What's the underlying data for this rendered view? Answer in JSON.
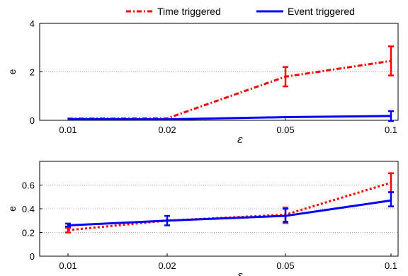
{
  "legend": {
    "entries": [
      {
        "name": "Time triggered",
        "color": "#ff0000",
        "style": "dash-dot"
      },
      {
        "name": "Event triggered",
        "color": "#0000ff",
        "style": "solid"
      }
    ],
    "placement": "top-center"
  },
  "chart_data": [
    {
      "type": "line",
      "panel": "top",
      "categories": [
        "0.01",
        "0.02",
        "0.05",
        "0.1"
      ],
      "xlabel": "ε",
      "ylabel": "e",
      "ylim": [
        0,
        4
      ],
      "yticks": [
        "0",
        "2",
        "4"
      ],
      "grid": "horizontal dotted",
      "series": [
        {
          "name": "Time triggered",
          "color": "#ff0000",
          "style": "dash-dot",
          "values": [
            0.07,
            0.08,
            1.8,
            2.45
          ],
          "err_low": [
            0.07,
            0.08,
            1.4,
            1.85
          ],
          "err_high": [
            0.07,
            0.08,
            2.2,
            3.05
          ]
        },
        {
          "name": "Event triggered",
          "color": "#0000ff",
          "style": "solid",
          "values": [
            0.05,
            0.04,
            0.13,
            0.18
          ],
          "err_low": [
            0.05,
            0.04,
            0.13,
            -0.03
          ],
          "err_high": [
            0.05,
            0.04,
            0.13,
            0.38
          ]
        }
      ]
    },
    {
      "type": "line",
      "panel": "bottom",
      "categories": [
        "0.01",
        "0.02",
        "0.05",
        "0.1"
      ],
      "xlabel": "ε",
      "ylabel": "e",
      "ylim": [
        0,
        0.8
      ],
      "yticks": [
        "0",
        "0.2",
        "0.4",
        "0.6"
      ],
      "grid": "horizontal dotted",
      "series": [
        {
          "name": "Time triggered",
          "color": "#ff0000",
          "style": "dotted",
          "values": [
            0.22,
            0.3,
            0.35,
            0.62
          ],
          "err_low": [
            0.2,
            0.3,
            0.28,
            0.54
          ],
          "err_high": [
            0.24,
            0.3,
            0.41,
            0.7
          ]
        },
        {
          "name": "Event triggered",
          "color": "#0000ff",
          "style": "solid",
          "values": [
            0.26,
            0.3,
            0.34,
            0.47
          ],
          "err_low": [
            0.25,
            0.26,
            0.29,
            0.42
          ],
          "err_high": [
            0.275,
            0.34,
            0.4,
            0.54
          ]
        }
      ]
    }
  ]
}
